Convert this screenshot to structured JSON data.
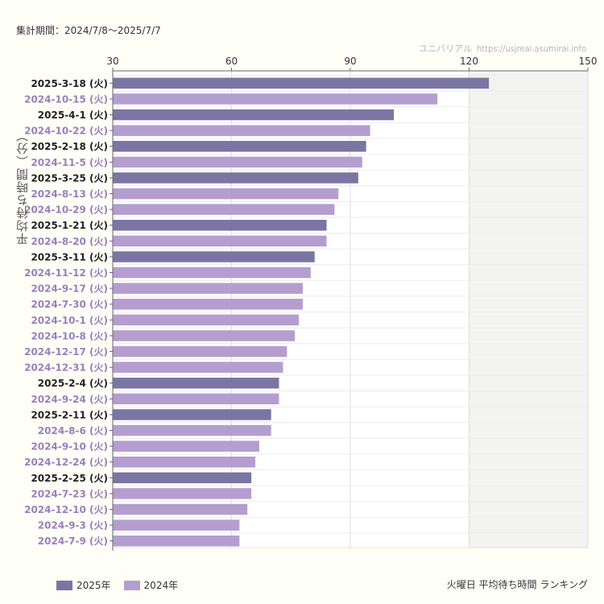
{
  "period_label": "集計期間：2024/7/8〜2025/7/7",
  "site": {
    "name": "ユニバリアル",
    "url": "https://usjreal.asumirai.info"
  },
  "caption": "火曜日 平均待ち時間 ランキング",
  "colors": {
    "y2025": "#7b75a3",
    "y2024": "#b49ecf",
    "label2025": "#222222",
    "label2024": "#9a7fbd"
  },
  "chart_data": {
    "type": "bar",
    "orientation": "horizontal",
    "ylabel": "平均待ち時間（分）",
    "xlim": [
      30,
      150
    ],
    "xticks": [
      "30",
      "60",
      "90",
      "120",
      "150"
    ],
    "grid": true,
    "legend_position": "bottom-left",
    "legend": [
      {
        "name": "2025年",
        "year": "2025"
      },
      {
        "name": "2024年",
        "year": "2024"
      }
    ],
    "categories": [
      "2025-3-18 (火)",
      "2024-10-15 (火)",
      "2025-4-1 (火)",
      "2024-10-22 (火)",
      "2025-2-18 (火)",
      "2024-11-5 (火)",
      "2025-3-25 (火)",
      "2024-8-13 (火)",
      "2024-10-29 (火)",
      "2025-1-21 (火)",
      "2024-8-20 (火)",
      "2025-3-11 (火)",
      "2024-11-12 (火)",
      "2024-9-17 (火)",
      "2024-7-30 (火)",
      "2024-10-1 (火)",
      "2024-10-8 (火)",
      "2024-12-17 (火)",
      "2024-12-31 (火)",
      "2025-2-4 (火)",
      "2024-9-24 (火)",
      "2025-2-11 (火)",
      "2024-8-6 (火)",
      "2024-9-10 (火)",
      "2024-12-24 (火)",
      "2025-2-25 (火)",
      "2024-7-23 (火)",
      "2024-12-10 (火)",
      "2024-9-3 (火)",
      "2024-7-9 (火)"
    ],
    "values": [
      125,
      112,
      101,
      95,
      94,
      93,
      92,
      87,
      86,
      84,
      84,
      81,
      80,
      78,
      78,
      77,
      76,
      74,
      73,
      72,
      72,
      70,
      70,
      67,
      66,
      65,
      65,
      64,
      62,
      62
    ],
    "years": [
      "2025",
      "2024",
      "2025",
      "2024",
      "2025",
      "2024",
      "2025",
      "2024",
      "2024",
      "2025",
      "2024",
      "2025",
      "2024",
      "2024",
      "2024",
      "2024",
      "2024",
      "2024",
      "2024",
      "2025",
      "2024",
      "2025",
      "2024",
      "2024",
      "2024",
      "2025",
      "2024",
      "2024",
      "2024",
      "2024"
    ]
  }
}
